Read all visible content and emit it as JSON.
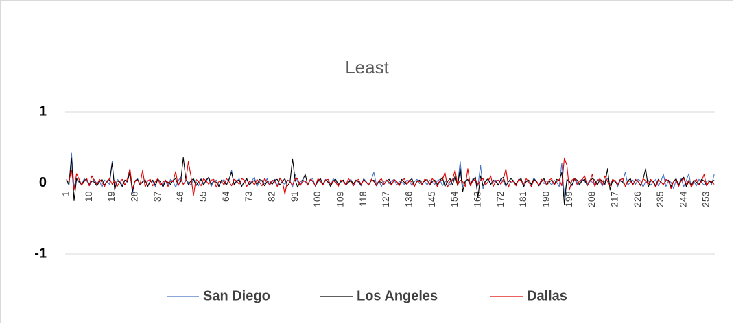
{
  "chart_data": {
    "type": "line",
    "title": "Least",
    "x": [
      1,
      2,
      3,
      4,
      5,
      6,
      7,
      8,
      9,
      10,
      11,
      12,
      13,
      14,
      15,
      16,
      17,
      18,
      19,
      20,
      21,
      22,
      23,
      24,
      25,
      26,
      27,
      28,
      29,
      30,
      31,
      32,
      33,
      34,
      35,
      36,
      37,
      38,
      39,
      40,
      41,
      42,
      43,
      44,
      45,
      46,
      47,
      48,
      49,
      50,
      51,
      52,
      53,
      54,
      55,
      56,
      57,
      58,
      59,
      60,
      61,
      62,
      63,
      64,
      65,
      66,
      67,
      68,
      69,
      70,
      71,
      72,
      73,
      74,
      75,
      76,
      77,
      78,
      79,
      80,
      81,
      82,
      83,
      84,
      85,
      86,
      87,
      88,
      89,
      90,
      91,
      92,
      93,
      94,
      95,
      96,
      97,
      98,
      99,
      100,
      101,
      102,
      103,
      104,
      105,
      106,
      107,
      108,
      109,
      110,
      111,
      112,
      113,
      114,
      115,
      116,
      117,
      118,
      119,
      120,
      121,
      122,
      123,
      124,
      125,
      126,
      127,
      128,
      129,
      130,
      131,
      132,
      133,
      134,
      135,
      136,
      137,
      138,
      139,
      140,
      141,
      142,
      143,
      144,
      145,
      146,
      147,
      148,
      149,
      150,
      151,
      152,
      153,
      154,
      155,
      156,
      157,
      158,
      159,
      160,
      161,
      162,
      163,
      164,
      165,
      166,
      167,
      168,
      169,
      170,
      171,
      172,
      173,
      174,
      175,
      176,
      177,
      178,
      179,
      180,
      181,
      182,
      183,
      184,
      185,
      186,
      187,
      188,
      189,
      190,
      191,
      192,
      193,
      194,
      195,
      196,
      197,
      198,
      199,
      200,
      201,
      202,
      203,
      204,
      205,
      206,
      207,
      208,
      209,
      210,
      211,
      212,
      213,
      214,
      215,
      216,
      217,
      218,
      219,
      220,
      221,
      222,
      223,
      224,
      225,
      226,
      227,
      228,
      229,
      230,
      231,
      232,
      233,
      234,
      235,
      236,
      237,
      238,
      239,
      240,
      241,
      242,
      243,
      244,
      245,
      246,
      247,
      248,
      249,
      250,
      251,
      252,
      253,
      254,
      255,
      256
    ],
    "xlim": [
      0.5,
      256.5
    ],
    "xticks": [
      1,
      10,
      19,
      28,
      37,
      46,
      55,
      64,
      73,
      82,
      91,
      100,
      109,
      118,
      127,
      136,
      145,
      154,
      163,
      172,
      181,
      190,
      199,
      208,
      217,
      226,
      235,
      244,
      253
    ],
    "ylim": [
      -1,
      1
    ],
    "yticks": [
      -1,
      0,
      1
    ],
    "grid": true,
    "legend": "bottom",
    "series": [
      {
        "name": "San Diego",
        "color": "#4472c4",
        "values": [
          0.02,
          -0.03,
          0.42,
          -0.05,
          0.04,
          0.01,
          -0.02,
          0.06,
          0.03,
          -0.04,
          0.02,
          0.05,
          -0.01,
          0.03,
          -0.06,
          0.04,
          0.01,
          -0.02,
          0.3,
          -0.08,
          0.05,
          0.02,
          -0.03,
          0.04,
          0.01,
          0.2,
          -0.15,
          0.03,
          0.06,
          -0.02,
          0.01,
          0.05,
          -0.04,
          0.03,
          0.02,
          -0.05,
          0.06,
          0.01,
          -0.03,
          0.04,
          -0.02,
          0.05,
          0.02,
          -0.06,
          0.03,
          0.08,
          -0.02,
          0.04,
          0.01,
          -0.03,
          0.05,
          0.02,
          -0.04,
          0.06,
          -0.01,
          0.03,
          0.07,
          -0.05,
          0.02,
          0.04,
          -0.03,
          0.01,
          0.05,
          -0.02,
          0.04,
          0.18,
          -0.03,
          0.02,
          0.06,
          -0.04,
          0.01,
          0.05,
          -0.02,
          0.03,
          0.08,
          -0.05,
          0.02,
          0.04,
          -0.01,
          0.06,
          -0.03,
          0.02,
          0.05,
          -0.04,
          0.07,
          0.01,
          -0.02,
          0.04,
          0.03,
          -0.06,
          0.12,
          0.02,
          -0.03,
          0.05,
          0.01,
          -0.02,
          0.04,
          0.06,
          -0.05,
          0.02,
          0.03,
          -0.01,
          0.05,
          0.02,
          -0.04,
          0.06,
          0.03,
          -0.02,
          0.01,
          0.04,
          -0.03,
          0.02,
          0.05,
          -0.02,
          0.03,
          0.01,
          -0.04,
          0.06,
          0.02,
          -0.03,
          0.04,
          0.15,
          -0.02,
          0.03,
          -0.05,
          0.02,
          0.04,
          -0.01,
          0.03,
          0.05,
          -0.03,
          0.02,
          0.01,
          -0.02,
          0.04,
          0.03,
          -0.04,
          0.02,
          0.05,
          -0.01,
          0.03,
          0.02,
          -0.03,
          0.04,
          0.01,
          -0.02,
          0.03,
          0.05,
          -0.04,
          0.02,
          0.01,
          -0.03,
          0.04,
          0.08,
          -0.02,
          0.3,
          -0.05,
          0.02,
          0.04,
          -0.03,
          0.06,
          0.02,
          -0.04,
          0.25,
          -0.08,
          0.03,
          0.05,
          -0.02,
          0.01,
          0.04,
          -0.03,
          0.06,
          0.02,
          -0.05,
          0.03,
          0.01,
          0.02,
          -0.03,
          0.05,
          0.04,
          -0.06,
          0.03,
          0.01,
          -0.02,
          0.07,
          0.02,
          -0.04,
          0.05,
          -0.01,
          0.03,
          0.02,
          -0.03,
          0.04,
          0.01,
          -0.05,
          0.28,
          -0.2,
          0.03,
          0.02,
          -0.04,
          0.05,
          0.01,
          -0.03,
          0.06,
          0.02,
          -0.02,
          0.04,
          0.01,
          -0.03,
          0.05,
          0.02,
          -0.04,
          0.03,
          0.06,
          -0.02,
          0.01,
          0.04,
          -0.05,
          0.03,
          0.02,
          0.15,
          -0.03,
          0.01,
          0.04,
          -0.02,
          0.05,
          0.03,
          -0.06,
          0.02,
          0.04,
          -0.03,
          0.01,
          0.05,
          -0.04,
          0.02,
          0.12,
          -0.05,
          0.03,
          0.01,
          -0.08,
          0.04,
          -0.02,
          0.06,
          -0.05,
          0.03,
          0.13,
          -0.06,
          0.02,
          -0.04,
          0.05,
          0.01,
          -0.03,
          0.02,
          0.04,
          -0.02,
          0.12
        ]
      },
      {
        "name": "Los Angeles",
        "color": "#000000",
        "values": [
          0.05,
          -0.02,
          0.35,
          -0.25,
          0.06,
          0.02,
          -0.03,
          0.04,
          0.05,
          -0.02,
          0.03,
          0.01,
          -0.04,
          0.02,
          0.05,
          -0.03,
          0.02,
          0.04,
          0.28,
          -0.1,
          0.03,
          0.01,
          -0.05,
          0.04,
          0.02,
          0.15,
          -0.12,
          0.03,
          0.05,
          -0.03,
          0.02,
          0.04,
          -0.05,
          0.02,
          0.04,
          -0.03,
          0.05,
          0.02,
          -0.06,
          0.03,
          0.01,
          -0.02,
          0.04,
          0.06,
          -0.03,
          0.02,
          0.36,
          0.05,
          -0.02,
          0.03,
          0.06,
          -0.04,
          0.02,
          0.05,
          -0.03,
          0.04,
          0.08,
          -0.02,
          0.03,
          0.01,
          -0.05,
          0.04,
          0.02,
          -0.03,
          0.05,
          0.15,
          -0.02,
          0.03,
          0.04,
          -0.05,
          0.02,
          0.06,
          -0.03,
          0.01,
          0.04,
          -0.02,
          0.05,
          0.03,
          -0.04,
          0.02,
          0.03,
          -0.02,
          0.04,
          0.05,
          -0.03,
          0.02,
          0.06,
          -0.04,
          0.01,
          0.34,
          0.05,
          -0.06,
          0.02,
          0.04,
          0.12,
          -0.03,
          0.05,
          0.02,
          -0.04,
          0.03,
          0.06,
          -0.02,
          0.04,
          0.01,
          -0.05,
          0.03,
          0.05,
          -0.02,
          0.02,
          0.04,
          -0.03,
          0.01,
          0.03,
          -0.01,
          0.04,
          0.02,
          -0.03,
          0.05,
          0.01,
          -0.02,
          0.03,
          0.04,
          -0.04,
          0.02,
          0.01,
          -0.02,
          0.03,
          0.05,
          -0.02,
          0.04,
          0.02,
          -0.03,
          0.05,
          0.01,
          -0.02,
          0.03,
          0.06,
          -0.04,
          0.02,
          0.04,
          -0.01,
          0.03,
          0.05,
          -0.03,
          0.02,
          0.04,
          -0.02,
          0.03,
          0.08,
          -0.05,
          0.02,
          0.06,
          -0.03,
          0.1,
          -0.04,
          0.2,
          -0.12,
          0.03,
          0.05,
          -0.02,
          0.04,
          0.08,
          -0.2,
          0.1,
          -0.04,
          0.03,
          0.06,
          -0.02,
          0.04,
          0.02,
          -0.03,
          0.05,
          0.08,
          -0.04,
          0.02,
          0.06,
          0.03,
          -0.02,
          0.04,
          0.06,
          -0.05,
          0.02,
          0.04,
          -0.02,
          0.05,
          0.03,
          -0.04,
          0.02,
          0.06,
          -0.03,
          0.01,
          0.04,
          -0.02,
          0.05,
          0.03,
          0.15,
          -0.3,
          0.05,
          0.02,
          -0.03,
          0.06,
          0.04,
          -0.02,
          0.03,
          0.05,
          -0.04,
          0.02,
          0.06,
          0.04,
          -0.03,
          0.05,
          0.03,
          -0.02,
          0.2,
          -0.1,
          0.04,
          0.02,
          -0.03,
          0.05,
          0.01,
          -0.04,
          0.03,
          0.06,
          -0.02,
          0.04,
          0.02,
          -0.03,
          0.05,
          0.2,
          -0.06,
          0.03,
          0.02,
          -0.04,
          0.05,
          0.01,
          -0.02,
          0.03,
          0.04,
          -0.05,
          0.02,
          0.06,
          -0.03,
          0.04,
          0.08,
          -0.05,
          0.02,
          -0.03,
          0.04,
          0.01,
          -0.02,
          0.05,
          0.03,
          -0.04,
          0.02,
          0.01,
          0.04
        ]
      },
      {
        "name": "Dallas",
        "color": "#e00000",
        "values": [
          0.04,
          0.02,
          0.18,
          -0.1,
          0.13,
          0.05,
          -0.03,
          0.02,
          0.06,
          -0.04,
          0.1,
          0.03,
          -0.02,
          0.05,
          0.01,
          -0.05,
          0.03,
          0.06,
          -0.02,
          0.04,
          -0.05,
          0.02,
          0.05,
          -0.03,
          0.06,
          0.2,
          -0.08,
          0.02,
          0.04,
          -0.02,
          0.18,
          -0.06,
          0.03,
          0.05,
          -0.04,
          0.02,
          0.06,
          -0.03,
          0.01,
          0.04,
          -0.05,
          0.03,
          0.02,
          0.16,
          -0.04,
          0.05,
          -0.02,
          0.03,
          0.3,
          0.1,
          -0.18,
          0.05,
          0.02,
          -0.04,
          0.06,
          0.03,
          -0.02,
          0.04,
          0.05,
          -0.06,
          0.02,
          0.03,
          -0.03,
          0.06,
          0.02,
          -0.04,
          0.05,
          0.03,
          -0.02,
          0.06,
          0.04,
          -0.05,
          0.02,
          0.03,
          -0.03,
          0.05,
          0.01,
          -0.04,
          0.06,
          0.02,
          -0.03,
          0.04,
          0.02,
          -0.05,
          0.06,
          0.03,
          -0.16,
          0.04,
          0.02,
          -0.03,
          0.05,
          0.06,
          -0.04,
          0.02,
          0.03,
          -0.02,
          0.05,
          0.03,
          -0.04,
          0.06,
          0.02,
          -0.03,
          0.04,
          0.05,
          -0.02,
          0.03,
          0.01,
          -0.05,
          0.04,
          0.02,
          -0.03,
          0.06,
          0.02,
          -0.04,
          0.03,
          0.05,
          -0.02,
          0.04,
          0.01,
          -0.03,
          0.05,
          0.02,
          -0.04,
          0.03,
          0.06,
          -0.02,
          0.04,
          0.01,
          -0.03,
          0.05,
          0.02,
          -0.04,
          0.03,
          0.06,
          -0.02,
          0.04,
          0.01,
          -0.05,
          0.03,
          0.02,
          -0.03,
          0.05,
          0.04,
          -0.02,
          0.06,
          0.02,
          -0.05,
          0.03,
          0.04,
          0.15,
          -0.06,
          0.02,
          0.05,
          0.18,
          -0.03,
          0.04,
          0.02,
          -0.05,
          0.2,
          -0.04,
          0.03,
          0.05,
          -0.02,
          0.04,
          0.06,
          -0.03,
          0.02,
          0.1,
          -0.05,
          0.03,
          0.04,
          -0.02,
          0.05,
          0.2,
          -0.06,
          0.03,
          0.02,
          -0.04,
          0.05,
          0.03,
          -0.02,
          0.06,
          0.01,
          -0.05,
          0.04,
          0.02,
          -0.03,
          0.05,
          0.03,
          -0.02,
          0.04,
          0.06,
          -0.03,
          0.02,
          0.05,
          -0.04,
          0.35,
          0.25,
          -0.1,
          0.04,
          0.06,
          -0.02,
          0.03,
          0.05,
          0.1,
          -0.04,
          0.02,
          0.12,
          -0.05,
          0.03,
          0.06,
          -0.03,
          0.1,
          0.02,
          -0.04,
          0.05,
          0.03,
          -0.02,
          0.04,
          0.06,
          -0.05,
          0.02,
          0.03,
          -0.03,
          0.05,
          0.02,
          -0.04,
          0.06,
          0.03,
          -0.02,
          0.05,
          0.01,
          -0.06,
          0.04,
          0.02,
          -0.03,
          0.05,
          0.03,
          -0.08,
          0.02,
          0.04,
          -0.05,
          0.03,
          0.06,
          -0.02,
          0.04,
          -0.06,
          0.02,
          0.05,
          -0.03,
          0.02,
          0.12,
          -0.04,
          0.03,
          0.02,
          -0.02
        ]
      }
    ]
  }
}
